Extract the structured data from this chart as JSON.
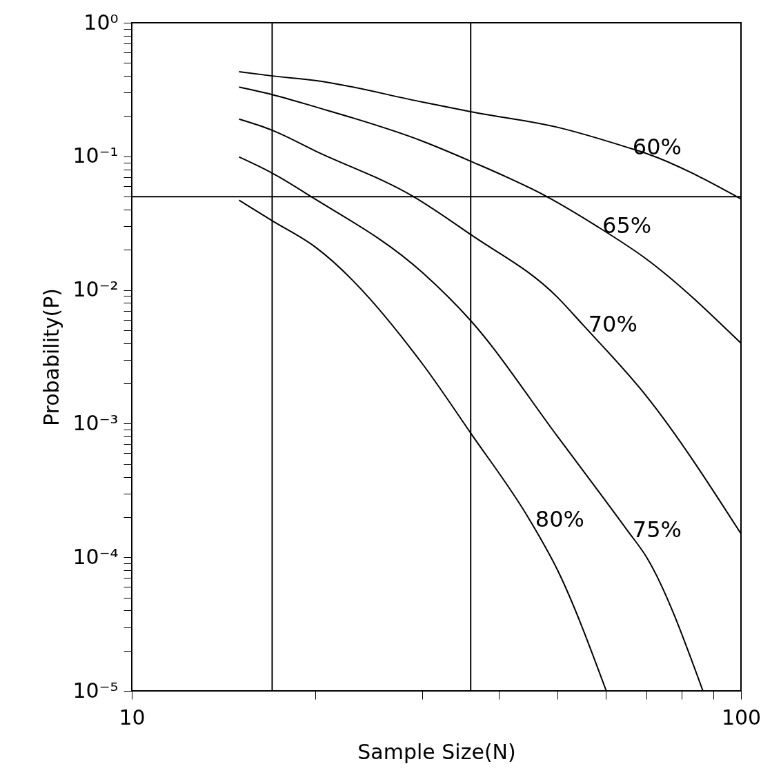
{
  "chart_data": {
    "type": "line",
    "xlabel": "Sample Size(N)",
    "ylabel": "Probability(P)",
    "log": "xy",
    "grid": false,
    "legend": false,
    "line_style": "solid",
    "xlim": [
      10,
      100
    ],
    "ylim": [
      1e-05,
      1
    ],
    "xticks": [
      10,
      {
        "value": 20,
        "label": null
      },
      {
        "value": 30,
        "label": null
      },
      {
        "value": 40,
        "label": null
      },
      {
        "value": 50,
        "label": null
      },
      {
        "value": 60,
        "label": null
      },
      {
        "value": 70,
        "label": null
      },
      {
        "value": 80,
        "label": null
      },
      {
        "value": 90,
        "label": null
      },
      100
    ],
    "yticks": [
      {
        "value": 1e-05,
        "label": "10⁻⁵"
      },
      {
        "value": 2e-05,
        "label": null
      },
      {
        "value": 3e-05,
        "label": null
      },
      {
        "value": 4e-05,
        "label": null
      },
      {
        "value": 5e-05,
        "label": null
      },
      {
        "value": 6e-05,
        "label": null
      },
      {
        "value": 7e-05,
        "label": null
      },
      {
        "value": 8e-05,
        "label": null
      },
      {
        "value": 9e-05,
        "label": null
      },
      {
        "value": 0.0001,
        "label": "10⁻⁴"
      },
      {
        "value": 0.0002,
        "label": null
      },
      {
        "value": 0.0003,
        "label": null
      },
      {
        "value": 0.0004,
        "label": null
      },
      {
        "value": 0.0005,
        "label": null
      },
      {
        "value": 0.0006,
        "label": null
      },
      {
        "value": 0.0007,
        "label": null
      },
      {
        "value": 0.0008,
        "label": null
      },
      {
        "value": 0.0009,
        "label": null
      },
      {
        "value": 0.001,
        "label": "10⁻³"
      },
      {
        "value": 0.002,
        "label": null
      },
      {
        "value": 0.003,
        "label": null
      },
      {
        "value": 0.004,
        "label": null
      },
      {
        "value": 0.005,
        "label": null
      },
      {
        "value": 0.006,
        "label": null
      },
      {
        "value": 0.007,
        "label": null
      },
      {
        "value": 0.008,
        "label": null
      },
      {
        "value": 0.009,
        "label": null
      },
      {
        "value": 0.01,
        "label": "10⁻²"
      },
      {
        "value": 0.02,
        "label": null
      },
      {
        "value": 0.03,
        "label": null
      },
      {
        "value": 0.04,
        "label": null
      },
      {
        "value": 0.05,
        "label": null
      },
      {
        "value": 0.06,
        "label": null
      },
      {
        "value": 0.07,
        "label": null
      },
      {
        "value": 0.08,
        "label": null
      },
      {
        "value": 0.09,
        "label": null
      },
      {
        "value": 0.1,
        "label": "10⁻¹"
      },
      {
        "value": 0.2,
        "label": null
      },
      {
        "value": 0.3,
        "label": null
      },
      {
        "value": 0.4,
        "label": null
      },
      {
        "value": 0.5,
        "label": null
      },
      {
        "value": 0.6,
        "label": null
      },
      {
        "value": 0.7,
        "label": null
      },
      {
        "value": 0.8,
        "label": null
      },
      {
        "value": 0.9,
        "label": null
      },
      {
        "value": 1,
        "label": "10⁰"
      }
    ],
    "series": [
      {
        "color": "#000000",
        "x": [
          15,
          17,
          20,
          30,
          36,
          50,
          65,
          70,
          100
        ],
        "values": [
          0.43,
          0.4,
          0.37,
          0.255,
          0.216,
          0.165,
          0.117,
          0.105,
          0.048
        ]
      },
      {
        "color": "#000000",
        "x": [
          15,
          17,
          20,
          30,
          36,
          48,
          58,
          70,
          100
        ],
        "values": [
          0.33,
          0.29,
          0.235,
          0.13,
          0.092,
          0.05,
          0.03,
          0.017,
          0.004
        ]
      },
      {
        "color": "#000000",
        "x": [
          15,
          17,
          20,
          29,
          36,
          50,
          55,
          70,
          100
        ],
        "values": [
          0.19,
          0.157,
          0.11,
          0.05,
          0.026,
          0.0088,
          0.0055,
          0.0016,
          0.00015
        ]
      },
      {
        "color": "#000000",
        "x": [
          15,
          17,
          19.7,
          30,
          36,
          50,
          65,
          70,
          86.6
        ],
        "values": [
          0.099,
          0.075,
          0.05,
          0.0135,
          0.0059,
          0.0008,
          0.00016,
          0.0001,
          1e-05
        ]
      },
      {
        "color": "#000000",
        "x": [
          15,
          17,
          20,
          30,
          36,
          45,
          50,
          60.1
        ],
        "values": [
          0.047,
          0.033,
          0.021,
          0.0028,
          0.00085,
          0.00019,
          8e-05,
          1e-05
        ]
      }
    ],
    "ref_lines": [
      {
        "axis": "x",
        "value": 17,
        "color": "#000000"
      },
      {
        "axis": "x",
        "value": 36,
        "color": "#000000"
      },
      {
        "axis": "y",
        "value": 0.05,
        "color": "#000000"
      }
    ],
    "annotations": [
      {
        "text": "60%",
        "x": 65,
        "y": 0.117
      },
      {
        "text": "65%",
        "x": 58,
        "y": 0.03
      },
      {
        "text": "70%",
        "x": 55,
        "y": 0.0055
      },
      {
        "text": "75%",
        "x": 65,
        "y": 0.00016
      },
      {
        "text": "80%",
        "x": 45,
        "y": 0.00019
      }
    ]
  }
}
